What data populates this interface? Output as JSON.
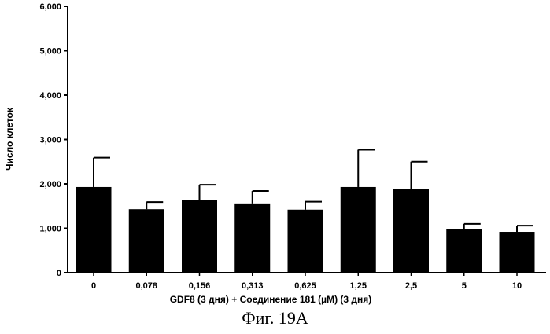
{
  "chart_data": {
    "type": "bar",
    "categories": [
      "0",
      "0,078",
      "0,156",
      "0,313",
      "0,625",
      "1,25",
      "2,5",
      "5",
      "10"
    ],
    "values": [
      1930,
      1430,
      1640,
      1560,
      1420,
      1930,
      1880,
      990,
      920
    ],
    "error_upper": [
      660,
      160,
      340,
      280,
      180,
      840,
      620,
      110,
      140
    ],
    "xlabel": "GDF8 (3 дня)  + Соединение 181 (µM) (3 дня)",
    "ylabel": "Число клеток",
    "ylim": [
      0,
      6000
    ],
    "yticks": [
      0,
      1000,
      2000,
      3000,
      4000,
      5000,
      6000
    ],
    "ytick_labels": [
      "0",
      "1,000",
      "2,000",
      "3,000",
      "4,000",
      "5,000",
      "6,000"
    ],
    "bar_color": "#000000",
    "grid": false,
    "legend": "none"
  },
  "caption": "Фиг. 19А"
}
